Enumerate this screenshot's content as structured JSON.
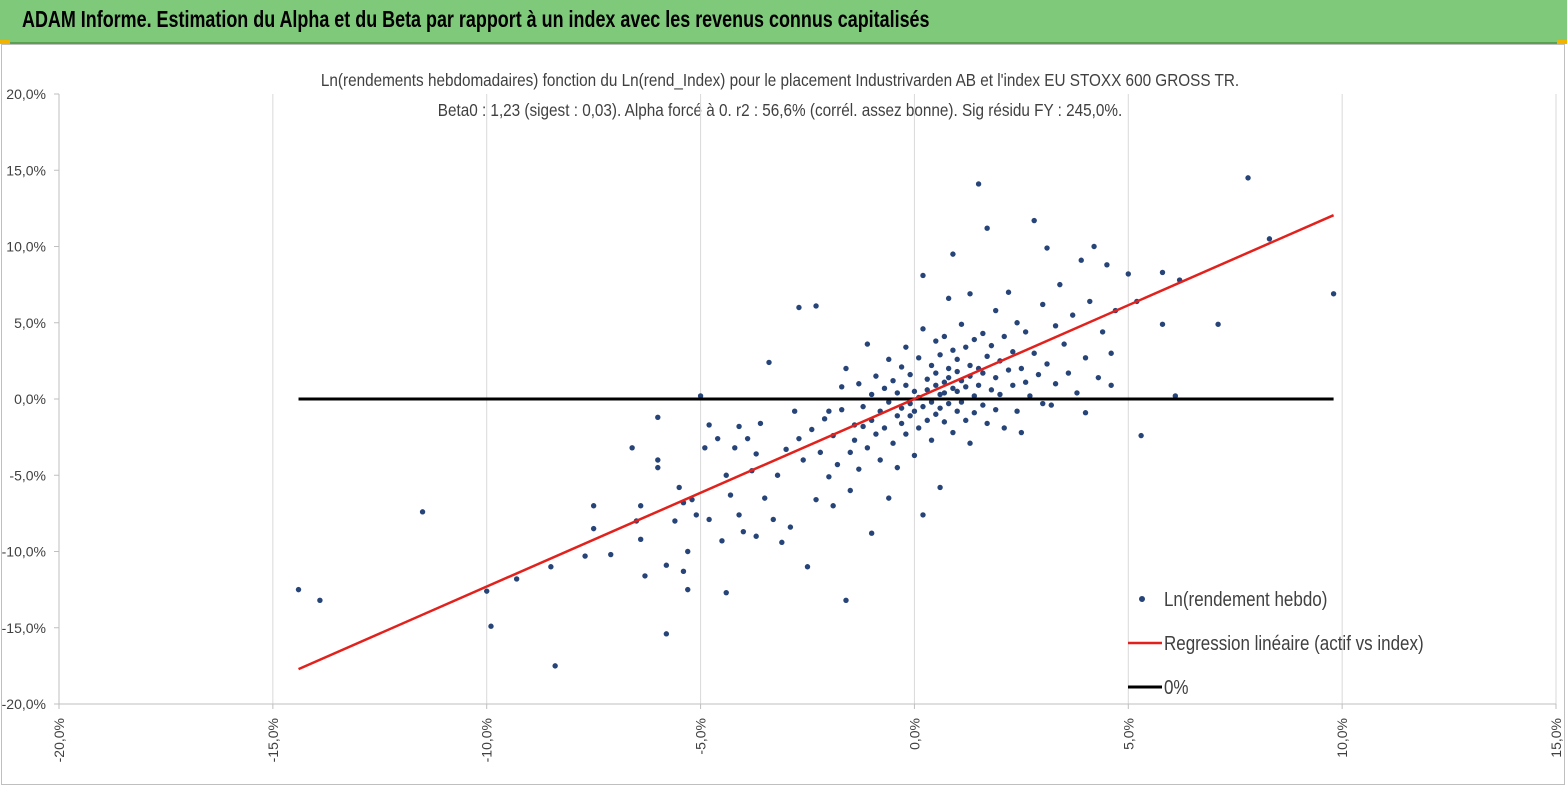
{
  "banner": {
    "title": "ADAM Informe. Estimation du Alpha et du Beta par rapport à un index avec les revenus connus capitalisés",
    "background": "#7fc97a"
  },
  "chart_data": {
    "type": "scatter",
    "title": "Ln(rendements hebdomadaires) fonction du Ln(rend_Index) pour le placement Industrivarden AB et l'index EU STOXX 600 GROSS TR.",
    "subtitle": "Beta0 : 1,23  (sigest : 0,03).  Alpha forcé à 0. r2 : 56,6% (corrél. assez bonne). Sig résidu FY : 245,0%.",
    "xlabel": "",
    "ylabel": "",
    "xlim": [
      -20,
      15
    ],
    "ylim": [
      -20,
      20
    ],
    "x_ticks": [
      -20,
      -15,
      -10,
      -5,
      0,
      5,
      10,
      15
    ],
    "x_tick_labels": [
      "-20,0%",
      "-15,0%",
      "-10,0%",
      "-5,0%",
      "0,0%",
      "5,0%",
      "10,0%",
      "15,0%"
    ],
    "y_ticks": [
      20,
      15,
      10,
      5,
      0,
      -5,
      -10,
      -15,
      -20
    ],
    "y_tick_labels": [
      "20,0%",
      "15,0%",
      "10,0%",
      "5,0%",
      "0,0%",
      "-5,0%",
      "-10,0%",
      "-15,0%",
      "-20,0%"
    ],
    "grid": "vertical",
    "legend_position": "bottom-right",
    "series": [
      {
        "name": "Ln(rendement hebdo)",
        "kind": "scatter",
        "color": "#264478",
        "points": [
          [
            -14.4,
            -12.5
          ],
          [
            -13.9,
            -13.2
          ],
          [
            -11.5,
            -7.4
          ],
          [
            -10.0,
            -12.6
          ],
          [
            -9.9,
            -14.9
          ],
          [
            -9.3,
            -11.8
          ],
          [
            -8.5,
            -11.0
          ],
          [
            -8.4,
            -17.5
          ],
          [
            -7.7,
            -10.3
          ],
          [
            -7.5,
            -7.0
          ],
          [
            -7.5,
            -8.5
          ],
          [
            -7.1,
            -10.2
          ],
          [
            -6.6,
            -3.2
          ],
          [
            -6.5,
            -8.0
          ],
          [
            -6.4,
            -7.0
          ],
          [
            -6.4,
            -9.2
          ],
          [
            -6.3,
            -11.6
          ],
          [
            -6.0,
            -1.2
          ],
          [
            -6.0,
            -4.0
          ],
          [
            -6.0,
            -4.5
          ],
          [
            -5.8,
            -15.4
          ],
          [
            -5.8,
            -10.9
          ],
          [
            -5.6,
            -8.0
          ],
          [
            -5.5,
            -5.8
          ],
          [
            -5.4,
            -11.3
          ],
          [
            -5.4,
            -6.8
          ],
          [
            -5.3,
            -10.0
          ],
          [
            -5.3,
            -12.5
          ],
          [
            -5.2,
            -6.6
          ],
          [
            -5.1,
            -7.6
          ],
          [
            -5.0,
            0.2
          ],
          [
            -4.9,
            -3.2
          ],
          [
            -4.8,
            -1.7
          ],
          [
            -4.8,
            -7.9
          ],
          [
            -4.6,
            -2.6
          ],
          [
            -4.5,
            -9.3
          ],
          [
            -4.4,
            -12.7
          ],
          [
            -4.4,
            -5.0
          ],
          [
            -4.3,
            -6.3
          ],
          [
            -4.2,
            -3.2
          ],
          [
            -4.1,
            -1.8
          ],
          [
            -4.1,
            -7.6
          ],
          [
            -4.0,
            -8.7
          ],
          [
            -3.9,
            -2.6
          ],
          [
            -3.8,
            -4.7
          ],
          [
            -3.7,
            -3.6
          ],
          [
            -3.7,
            -9.0
          ],
          [
            -3.6,
            -1.6
          ],
          [
            -3.5,
            -6.5
          ],
          [
            -3.4,
            2.4
          ],
          [
            -3.3,
            -7.9
          ],
          [
            -3.2,
            -5.0
          ],
          [
            -3.1,
            -9.4
          ],
          [
            -3.0,
            -3.3
          ],
          [
            -2.9,
            -8.4
          ],
          [
            -2.8,
            -0.8
          ],
          [
            -2.7,
            -2.6
          ],
          [
            -2.7,
            6.0
          ],
          [
            -2.6,
            -4.0
          ],
          [
            -2.5,
            -11.0
          ],
          [
            -2.4,
            -2.0
          ],
          [
            -2.3,
            6.1
          ],
          [
            -2.3,
            -6.6
          ],
          [
            -2.2,
            -3.5
          ],
          [
            -2.1,
            -1.3
          ],
          [
            -2.0,
            -5.1
          ],
          [
            -2.0,
            -0.8
          ],
          [
            -1.9,
            -7.0
          ],
          [
            -1.9,
            -2.4
          ],
          [
            -1.8,
            -4.3
          ],
          [
            -1.7,
            0.8
          ],
          [
            -1.7,
            -0.7
          ],
          [
            -1.6,
            -13.2
          ],
          [
            -1.6,
            2.0
          ],
          [
            -1.5,
            -3.5
          ],
          [
            -1.5,
            -6.0
          ],
          [
            -1.4,
            -1.7
          ],
          [
            -1.4,
            -2.7
          ],
          [
            -1.3,
            1.0
          ],
          [
            -1.3,
            -4.6
          ],
          [
            -1.2,
            -0.5
          ],
          [
            -1.2,
            -1.8
          ],
          [
            -1.1,
            3.6
          ],
          [
            -1.1,
            -3.2
          ],
          [
            -1.0,
            0.3
          ],
          [
            -1.0,
            -8.8
          ],
          [
            -1.0,
            -1.4
          ],
          [
            -0.9,
            -2.3
          ],
          [
            -0.9,
            1.5
          ],
          [
            -0.8,
            -0.8
          ],
          [
            -0.8,
            -4.0
          ],
          [
            -0.7,
            0.7
          ],
          [
            -0.7,
            -1.9
          ],
          [
            -0.6,
            -6.5
          ],
          [
            -0.6,
            2.6
          ],
          [
            -0.6,
            -0.2
          ],
          [
            -0.5,
            -2.9
          ],
          [
            -0.5,
            1.2
          ],
          [
            -0.4,
            -1.1
          ],
          [
            -0.4,
            -4.5
          ],
          [
            -0.4,
            0.4
          ],
          [
            -0.3,
            2.1
          ],
          [
            -0.3,
            -1.6
          ],
          [
            -0.3,
            -0.6
          ],
          [
            -0.2,
            0.9
          ],
          [
            -0.2,
            -2.3
          ],
          [
            -0.2,
            3.4
          ],
          [
            -0.1,
            -0.3
          ],
          [
            -0.1,
            -1.1
          ],
          [
            -0.1,
            1.6
          ],
          [
            0.0,
            -3.7
          ],
          [
            0.0,
            0.5
          ],
          [
            0.0,
            -0.8
          ],
          [
            0.1,
            2.7
          ],
          [
            0.1,
            -1.9
          ],
          [
            0.1,
            0.1
          ],
          [
            0.2,
            8.1
          ],
          [
            0.2,
            4.6
          ],
          [
            0.2,
            -0.5
          ],
          [
            0.2,
            -7.6
          ],
          [
            0.3,
            1.3
          ],
          [
            0.3,
            -1.4
          ],
          [
            0.3,
            0.6
          ],
          [
            0.4,
            2.2
          ],
          [
            0.4,
            -0.2
          ],
          [
            0.4,
            -2.7
          ],
          [
            0.5,
            3.8
          ],
          [
            0.5,
            0.9
          ],
          [
            0.5,
            -1.0
          ],
          [
            0.5,
            1.7
          ],
          [
            0.6,
            0.3
          ],
          [
            0.6,
            -0.6
          ],
          [
            0.6,
            2.9
          ],
          [
            0.6,
            -5.8
          ],
          [
            0.7,
            1.1
          ],
          [
            0.7,
            -1.5
          ],
          [
            0.7,
            0.4
          ],
          [
            0.7,
            4.1
          ],
          [
            0.8,
            2.0
          ],
          [
            0.8,
            -0.3
          ],
          [
            0.8,
            6.6
          ],
          [
            0.8,
            1.4
          ],
          [
            0.9,
            0.7
          ],
          [
            0.9,
            -2.2
          ],
          [
            0.9,
            3.2
          ],
          [
            0.9,
            9.5
          ],
          [
            1.0,
            1.8
          ],
          [
            1.0,
            -0.8
          ],
          [
            1.0,
            0.5
          ],
          [
            1.0,
            2.6
          ],
          [
            1.1,
            4.9
          ],
          [
            1.1,
            -0.2
          ],
          [
            1.1,
            1.2
          ],
          [
            1.2,
            -1.4
          ],
          [
            1.2,
            3.4
          ],
          [
            1.2,
            0.8
          ],
          [
            1.3,
            2.2
          ],
          [
            1.3,
            -2.9
          ],
          [
            1.3,
            6.9
          ],
          [
            1.3,
            1.5
          ],
          [
            1.4,
            0.2
          ],
          [
            1.4,
            3.9
          ],
          [
            1.4,
            -0.9
          ],
          [
            1.5,
            2.0
          ],
          [
            1.5,
            0.9
          ],
          [
            1.5,
            14.1
          ],
          [
            1.6,
            4.3
          ],
          [
            1.6,
            -0.4
          ],
          [
            1.6,
            1.7
          ],
          [
            1.7,
            2.8
          ],
          [
            1.7,
            11.2
          ],
          [
            1.7,
            -1.6
          ],
          [
            1.8,
            0.6
          ],
          [
            1.8,
            3.5
          ],
          [
            1.9,
            1.4
          ],
          [
            1.9,
            5.8
          ],
          [
            1.9,
            -0.7
          ],
          [
            2.0,
            2.5
          ],
          [
            2.0,
            0.3
          ],
          [
            2.1,
            4.1
          ],
          [
            2.1,
            -1.9
          ],
          [
            2.2,
            1.9
          ],
          [
            2.2,
            7.0
          ],
          [
            2.3,
            0.9
          ],
          [
            2.3,
            3.1
          ],
          [
            2.4,
            -0.8
          ],
          [
            2.4,
            5.0
          ],
          [
            2.5,
            2.0
          ],
          [
            2.5,
            -2.2
          ],
          [
            2.6,
            1.1
          ],
          [
            2.6,
            4.4
          ],
          [
            2.7,
            0.2
          ],
          [
            2.8,
            11.7
          ],
          [
            2.8,
            3.0
          ],
          [
            2.9,
            1.6
          ],
          [
            3.0,
            6.2
          ],
          [
            3.0,
            -0.3
          ],
          [
            3.1,
            9.9
          ],
          [
            3.1,
            2.3
          ],
          [
            3.2,
            -0.4
          ],
          [
            3.3,
            4.8
          ],
          [
            3.3,
            1.0
          ],
          [
            3.4,
            7.5
          ],
          [
            3.5,
            3.6
          ],
          [
            3.6,
            1.7
          ],
          [
            3.7,
            5.5
          ],
          [
            3.8,
            0.4
          ],
          [
            3.9,
            9.1
          ],
          [
            4.0,
            2.7
          ],
          [
            4.0,
            -0.9
          ],
          [
            4.1,
            6.4
          ],
          [
            4.2,
            10.0
          ],
          [
            4.3,
            1.4
          ],
          [
            4.4,
            4.4
          ],
          [
            4.5,
            8.8
          ],
          [
            4.6,
            3.0
          ],
          [
            4.6,
            0.9
          ],
          [
            4.7,
            5.8
          ],
          [
            5.2,
            6.4
          ],
          [
            5.3,
            -2.4
          ],
          [
            5.0,
            8.2
          ],
          [
            5.8,
            8.3
          ],
          [
            5.8,
            4.9
          ],
          [
            6.1,
            0.2
          ],
          [
            6.2,
            7.8
          ],
          [
            7.1,
            4.9
          ],
          [
            7.8,
            14.5
          ],
          [
            8.3,
            10.5
          ],
          [
            9.8,
            6.9
          ]
        ]
      },
      {
        "name": "Regression linéaire (actif vs index)",
        "kind": "line",
        "color": "#e3211c",
        "slope": 1.23,
        "x_range": [
          -14.4,
          9.8
        ]
      },
      {
        "name": "0%",
        "kind": "line",
        "color": "#000000",
        "y_value": 0,
        "x_range": [
          -14.4,
          9.8
        ]
      }
    ]
  }
}
